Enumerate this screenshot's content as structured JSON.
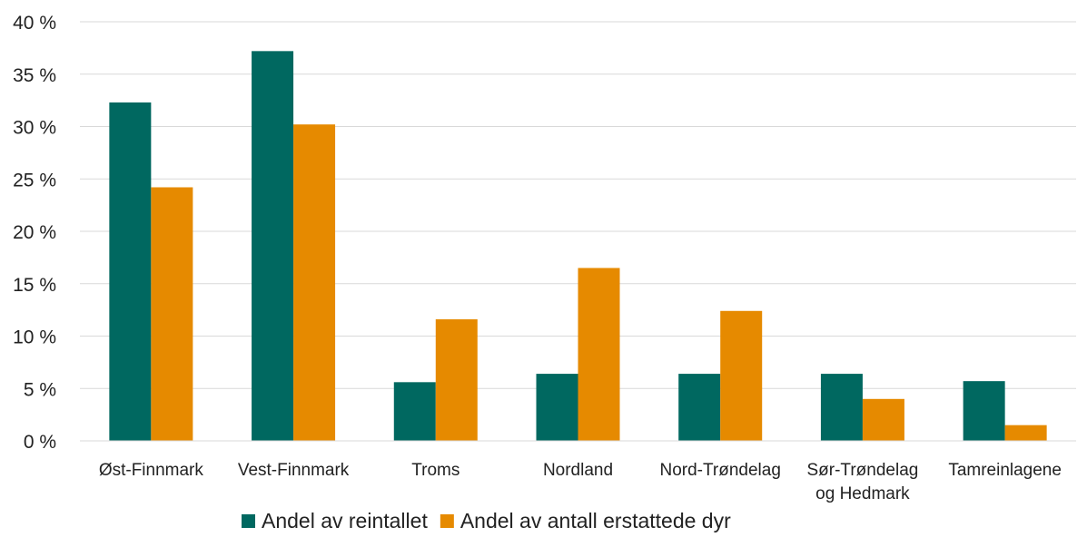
{
  "chart_data": {
    "type": "bar",
    "categories": [
      [
        "Øst-Finnmark"
      ],
      [
        "Vest-Finnmark"
      ],
      [
        "Troms"
      ],
      [
        "Nordland"
      ],
      [
        "Nord-Trøndelag"
      ],
      [
        "Sør-Trøndelag",
        "og Hedmark"
      ],
      [
        "Tamreinlagene"
      ]
    ],
    "series": [
      {
        "name": "Andel av reintallet",
        "color": "#006860",
        "values": [
          32.3,
          37.2,
          5.6,
          6.4,
          6.4,
          6.4,
          5.7
        ]
      },
      {
        "name": "Andel av antall erstattede dyr",
        "color": "#E68A00",
        "values": [
          24.2,
          30.2,
          11.6,
          16.5,
          12.4,
          4.0,
          1.5
        ]
      }
    ],
    "ylim": [
      0,
      40
    ],
    "yticks": [
      0,
      5,
      10,
      15,
      20,
      25,
      30,
      35,
      40
    ],
    "ytick_labels": [
      "0 %",
      "5 %",
      "10 %",
      "15 %",
      "20 %",
      "25 %",
      "30 %",
      "35 %",
      "40 %"
    ],
    "grid": true,
    "legend": "bottom"
  }
}
